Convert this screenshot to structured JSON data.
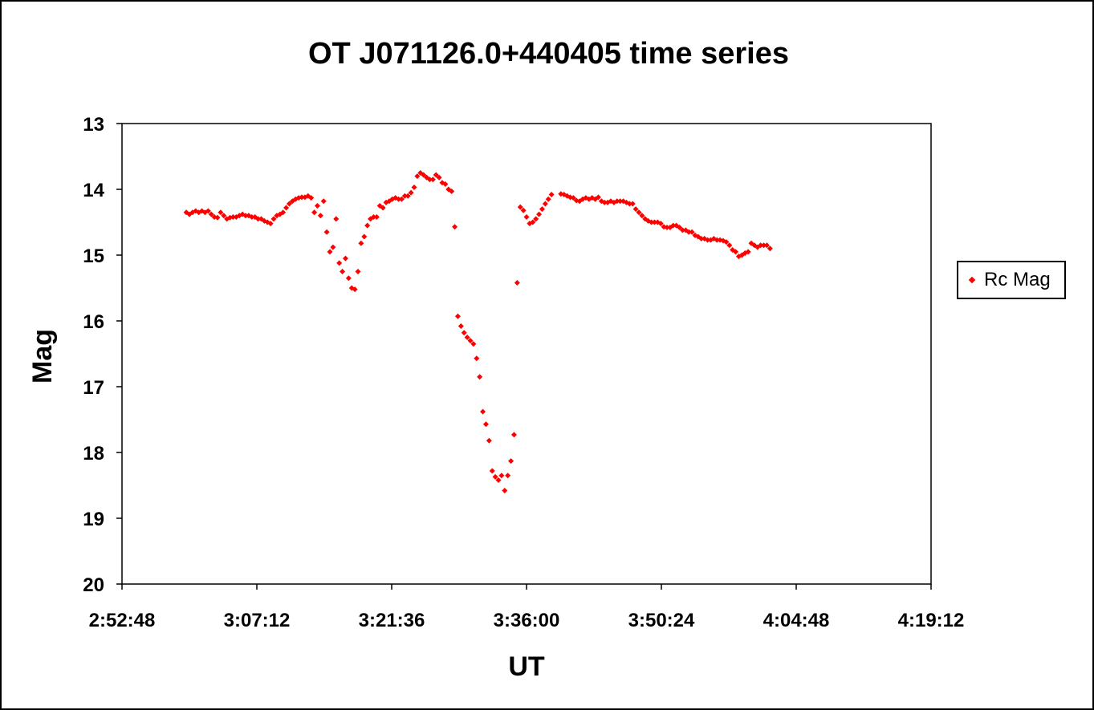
{
  "chart_data": {
    "type": "scatter",
    "title": "OT J071126.0+440405 time series",
    "xlabel": "UT",
    "ylabel": "Mag",
    "x_ticks": [
      "2:52:48",
      "3:07:12",
      "3:21:36",
      "3:36:00",
      "3:50:24",
      "4:04:48",
      "4:19:12"
    ],
    "xlim": [
      "2:52:48",
      "4:19:12"
    ],
    "y_ticks": [
      "13",
      "14",
      "15",
      "16",
      "17",
      "18",
      "19",
      "20"
    ],
    "ylim": [
      13,
      20
    ],
    "y_inverted": true,
    "legend_position": "right",
    "series": [
      {
        "name": "Rc Mag",
        "color": "#ff0000",
        "marker": "diamond",
        "points": [
          [
            "2:59:40",
            14.35
          ],
          [
            "3:00:00",
            14.38
          ],
          [
            "3:00:20",
            14.35
          ],
          [
            "3:00:40",
            14.33
          ],
          [
            "3:01:00",
            14.35
          ],
          [
            "3:01:20",
            14.33
          ],
          [
            "3:01:40",
            14.35
          ],
          [
            "3:02:00",
            14.33
          ],
          [
            "3:02:20",
            14.38
          ],
          [
            "3:02:40",
            14.42
          ],
          [
            "3:03:00",
            14.43
          ],
          [
            "3:03:20",
            14.35
          ],
          [
            "3:03:40",
            14.4
          ],
          [
            "3:04:00",
            14.45
          ],
          [
            "3:04:20",
            14.43
          ],
          [
            "3:04:40",
            14.42
          ],
          [
            "3:05:00",
            14.42
          ],
          [
            "3:05:20",
            14.4
          ],
          [
            "3:05:40",
            14.38
          ],
          [
            "3:06:00",
            14.4
          ],
          [
            "3:06:20",
            14.4
          ],
          [
            "3:06:40",
            14.42
          ],
          [
            "3:07:00",
            14.42
          ],
          [
            "3:07:20",
            14.45
          ],
          [
            "3:07:40",
            14.45
          ],
          [
            "3:08:00",
            14.48
          ],
          [
            "3:08:20",
            14.5
          ],
          [
            "3:08:40",
            14.52
          ],
          [
            "3:09:00",
            14.45
          ],
          [
            "3:09:20",
            14.4
          ],
          [
            "3:09:40",
            14.38
          ],
          [
            "3:10:00",
            14.35
          ],
          [
            "3:10:20",
            14.28
          ],
          [
            "3:10:40",
            14.22
          ],
          [
            "3:11:00",
            14.18
          ],
          [
            "3:11:20",
            14.15
          ],
          [
            "3:11:40",
            14.13
          ],
          [
            "3:12:00",
            14.12
          ],
          [
            "3:12:20",
            14.12
          ],
          [
            "3:12:40",
            14.1
          ],
          [
            "3:13:00",
            14.13
          ],
          [
            "3:13:20",
            14.35
          ],
          [
            "3:13:40",
            14.25
          ],
          [
            "3:14:00",
            14.4
          ],
          [
            "3:14:20",
            14.18
          ],
          [
            "3:14:40",
            14.65
          ],
          [
            "3:15:00",
            14.95
          ],
          [
            "3:15:20",
            14.88
          ],
          [
            "3:15:40",
            14.45
          ],
          [
            "3:16:00",
            15.12
          ],
          [
            "3:16:20",
            15.25
          ],
          [
            "3:16:40",
            15.05
          ],
          [
            "3:17:00",
            15.35
          ],
          [
            "3:17:20",
            15.5
          ],
          [
            "3:17:40",
            15.52
          ],
          [
            "3:18:00",
            15.25
          ],
          [
            "3:18:20",
            14.82
          ],
          [
            "3:18:40",
            14.72
          ],
          [
            "3:19:00",
            14.55
          ],
          [
            "3:19:20",
            14.45
          ],
          [
            "3:19:40",
            14.42
          ],
          [
            "3:20:00",
            14.42
          ],
          [
            "3:20:20",
            14.25
          ],
          [
            "3:20:40",
            14.28
          ],
          [
            "3:21:00",
            14.2
          ],
          [
            "3:21:20",
            14.18
          ],
          [
            "3:21:40",
            14.15
          ],
          [
            "3:22:00",
            14.13
          ],
          [
            "3:22:20",
            14.15
          ],
          [
            "3:22:40",
            14.15
          ],
          [
            "3:23:00",
            14.1
          ],
          [
            "3:23:20",
            14.1
          ],
          [
            "3:23:40",
            14.05
          ],
          [
            "3:24:00",
            13.97
          ],
          [
            "3:24:20",
            13.8
          ],
          [
            "3:24:40",
            13.75
          ],
          [
            "3:25:00",
            13.78
          ],
          [
            "3:25:20",
            13.82
          ],
          [
            "3:25:40",
            13.85
          ],
          [
            "3:26:00",
            13.85
          ],
          [
            "3:26:20",
            13.78
          ],
          [
            "3:26:40",
            13.82
          ],
          [
            "3:27:00",
            13.9
          ],
          [
            "3:27:20",
            13.92
          ],
          [
            "3:27:40",
            14.0
          ],
          [
            "3:28:00",
            14.03
          ],
          [
            "3:28:20",
            14.57
          ],
          [
            "3:28:40",
            15.93
          ],
          [
            "3:29:00",
            16.08
          ],
          [
            "3:29:20",
            16.18
          ],
          [
            "3:29:40",
            16.25
          ],
          [
            "3:30:00",
            16.3
          ],
          [
            "3:30:20",
            16.35
          ],
          [
            "3:30:40",
            16.57
          ],
          [
            "3:31:00",
            16.85
          ],
          [
            "3:31:20",
            17.38
          ],
          [
            "3:31:40",
            17.57
          ],
          [
            "3:32:00",
            17.82
          ],
          [
            "3:32:20",
            18.28
          ],
          [
            "3:32:40",
            18.37
          ],
          [
            "3:33:00",
            18.42
          ],
          [
            "3:33:20",
            18.35
          ],
          [
            "3:33:40",
            18.58
          ],
          [
            "3:34:00",
            18.35
          ],
          [
            "3:34:20",
            18.13
          ],
          [
            "3:34:40",
            17.73
          ],
          [
            "3:35:00",
            15.42
          ],
          [
            "3:35:20",
            14.27
          ],
          [
            "3:35:40",
            14.32
          ],
          [
            "3:36:00",
            14.42
          ],
          [
            "3:36:20",
            14.52
          ],
          [
            "3:36:40",
            14.5
          ],
          [
            "3:37:00",
            14.45
          ],
          [
            "3:37:20",
            14.38
          ],
          [
            "3:37:40",
            14.3
          ],
          [
            "3:38:00",
            14.22
          ],
          [
            "3:38:20",
            14.15
          ],
          [
            "3:38:40",
            14.08
          ],
          [
            "3:39:40",
            14.07
          ],
          [
            "3:40:00",
            14.08
          ],
          [
            "3:40:20",
            14.1
          ],
          [
            "3:40:40",
            14.12
          ],
          [
            "3:41:00",
            14.13
          ],
          [
            "3:41:20",
            14.17
          ],
          [
            "3:41:40",
            14.18
          ],
          [
            "3:42:00",
            14.15
          ],
          [
            "3:42:20",
            14.13
          ],
          [
            "3:42:40",
            14.15
          ],
          [
            "3:43:00",
            14.13
          ],
          [
            "3:43:20",
            14.15
          ],
          [
            "3:43:40",
            14.12
          ],
          [
            "3:44:00",
            14.18
          ],
          [
            "3:44:20",
            14.2
          ],
          [
            "3:44:40",
            14.2
          ],
          [
            "3:45:00",
            14.18
          ],
          [
            "3:45:20",
            14.2
          ],
          [
            "3:45:40",
            14.18
          ],
          [
            "3:46:00",
            14.18
          ],
          [
            "3:46:20",
            14.18
          ],
          [
            "3:46:40",
            14.2
          ],
          [
            "3:47:00",
            14.22
          ],
          [
            "3:47:20",
            14.22
          ],
          [
            "3:47:40",
            14.3
          ],
          [
            "3:48:00",
            14.35
          ],
          [
            "3:48:20",
            14.4
          ],
          [
            "3:48:40",
            14.45
          ],
          [
            "3:49:00",
            14.48
          ],
          [
            "3:49:20",
            14.5
          ],
          [
            "3:49:40",
            14.5
          ],
          [
            "3:50:00",
            14.5
          ],
          [
            "3:50:20",
            14.52
          ],
          [
            "3:50:40",
            14.57
          ],
          [
            "3:51:00",
            14.58
          ],
          [
            "3:51:20",
            14.58
          ],
          [
            "3:51:40",
            14.55
          ],
          [
            "3:52:00",
            14.55
          ],
          [
            "3:52:20",
            14.58
          ],
          [
            "3:52:40",
            14.62
          ],
          [
            "3:53:00",
            14.62
          ],
          [
            "3:53:20",
            14.65
          ],
          [
            "3:53:40",
            14.65
          ],
          [
            "3:54:00",
            14.7
          ],
          [
            "3:54:20",
            14.72
          ],
          [
            "3:54:40",
            14.75
          ],
          [
            "3:55:00",
            14.75
          ],
          [
            "3:55:20",
            14.77
          ],
          [
            "3:55:40",
            14.77
          ],
          [
            "3:56:00",
            14.75
          ],
          [
            "3:56:20",
            14.77
          ],
          [
            "3:56:40",
            14.77
          ],
          [
            "3:57:00",
            14.78
          ],
          [
            "3:57:20",
            14.8
          ],
          [
            "3:57:40",
            14.85
          ],
          [
            "3:58:00",
            14.92
          ],
          [
            "3:58:20",
            14.95
          ],
          [
            "3:58:40",
            15.02
          ],
          [
            "3:59:00",
            15.0
          ],
          [
            "3:59:20",
            14.97
          ],
          [
            "3:59:40",
            14.95
          ],
          [
            "4:00:00",
            14.82
          ],
          [
            "4:00:20",
            14.85
          ],
          [
            "4:00:40",
            14.88
          ],
          [
            "4:01:00",
            14.85
          ],
          [
            "4:01:20",
            14.85
          ],
          [
            "4:01:40",
            14.85
          ],
          [
            "4:02:00",
            14.9
          ]
        ]
      }
    ]
  }
}
